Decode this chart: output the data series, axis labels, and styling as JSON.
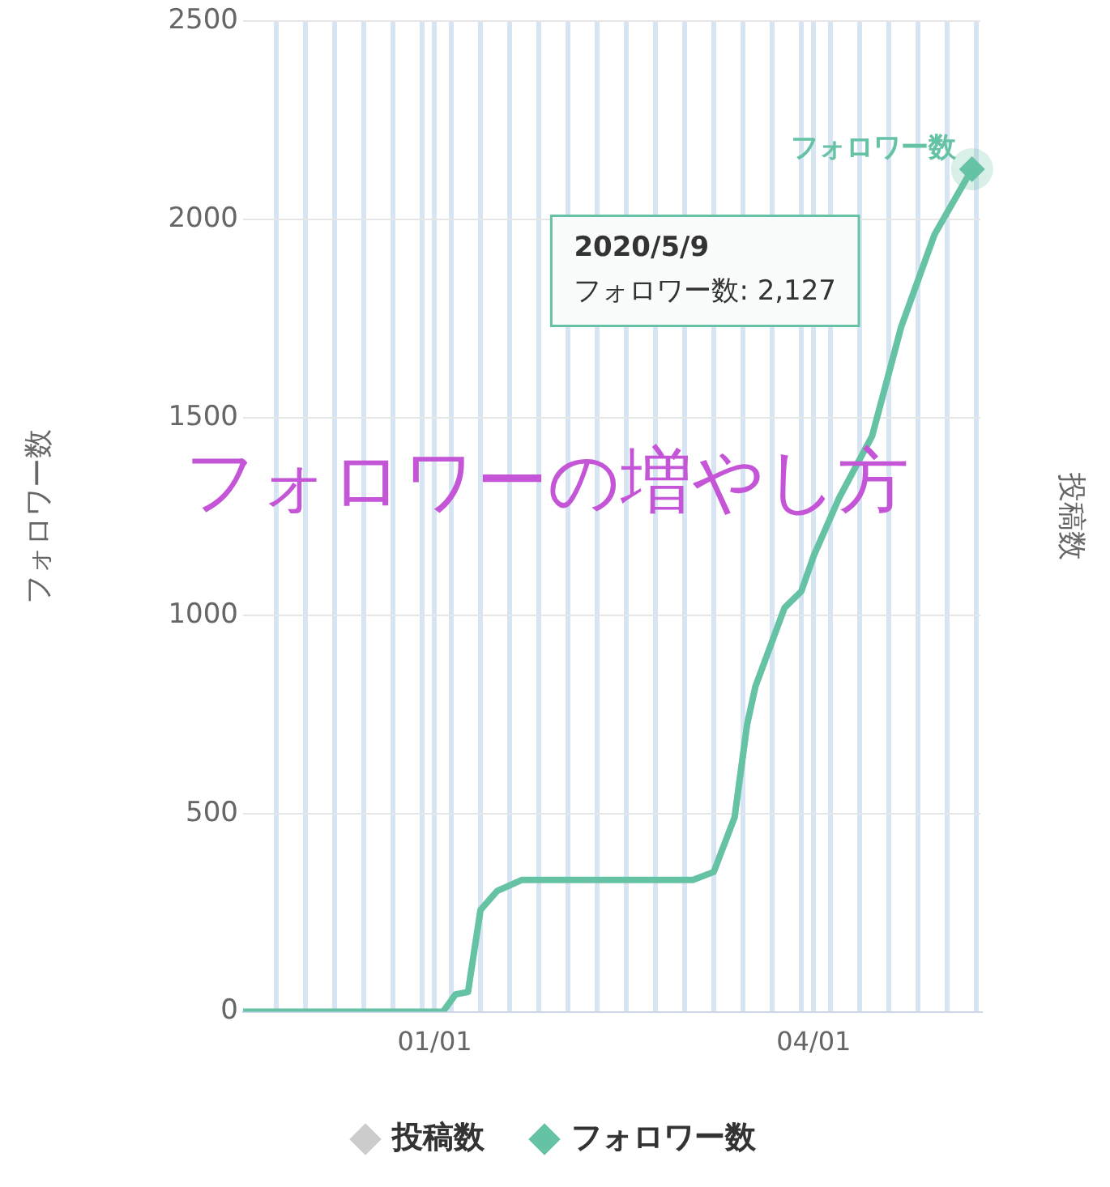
{
  "chart_data": {
    "type": "line",
    "ylabel": "フォロワー数",
    "y2label": "投稿数",
    "x": [
      "2019-11-16",
      "2020-01-03",
      "2020-01-06",
      "2020-01-09",
      "2020-01-12",
      "2020-01-16",
      "2020-01-22",
      "2020-03-03",
      "2020-03-08",
      "2020-03-13",
      "2020-03-16",
      "2020-03-18",
      "2020-03-25",
      "2020-03-29",
      "2020-04-01",
      "2020-04-07",
      "2020-04-15",
      "2020-04-22",
      "2020-04-30",
      "2020-05-09"
    ],
    "series": [
      {
        "name": "投稿数",
        "color": "#cccccc",
        "values": [
          null,
          null,
          null,
          null,
          null,
          null,
          null,
          null,
          null,
          null,
          null,
          null,
          null,
          null,
          null,
          null,
          null,
          null,
          null,
          null
        ]
      },
      {
        "name": "フォロワー数",
        "color": "#66c2a5",
        "values": [
          0,
          0,
          44,
          50,
          257,
          305,
          333,
          333,
          353,
          491,
          725,
          821,
          1020,
          1061,
          1151,
          1295,
          1453,
          1729,
          1962,
          2127
        ]
      }
    ],
    "xlim": [
      "2019-11-16",
      "2020-05-11"
    ],
    "xticks": [
      {
        "value": "2019-11-24",
        "label": null
      },
      {
        "value": "2019-12-01",
        "label": null
      },
      {
        "value": "2019-12-08",
        "label": null
      },
      {
        "value": "2019-12-15",
        "label": null
      },
      {
        "value": "2019-12-22",
        "label": null
      },
      {
        "value": "2019-12-29",
        "label": null
      },
      {
        "value": "2020-01-01",
        "label": "01/01"
      },
      {
        "value": "2020-01-05",
        "label": null
      },
      {
        "value": "2020-01-12",
        "label": null
      },
      {
        "value": "2020-01-19",
        "label": null
      },
      {
        "value": "2020-01-26",
        "label": null
      },
      {
        "value": "2020-02-02",
        "label": null
      },
      {
        "value": "2020-02-09",
        "label": null
      },
      {
        "value": "2020-02-16",
        "label": null
      },
      {
        "value": "2020-02-23",
        "label": null
      },
      {
        "value": "2020-03-01",
        "label": null
      },
      {
        "value": "2020-03-08",
        "label": null
      },
      {
        "value": "2020-03-15",
        "label": null
      },
      {
        "value": "2020-03-22",
        "label": null
      },
      {
        "value": "2020-03-29",
        "label": null
      },
      {
        "value": "2020-04-01",
        "label": "04/01"
      },
      {
        "value": "2020-04-05",
        "label": null
      },
      {
        "value": "2020-04-12",
        "label": null
      },
      {
        "value": "2020-04-19",
        "label": null
      },
      {
        "value": "2020-04-26",
        "label": null
      },
      {
        "value": "2020-05-03",
        "label": null
      },
      {
        "value": "2020-05-10",
        "label": null
      }
    ],
    "ylim": [
      0,
      2500
    ],
    "yticks": [
      0,
      500,
      1000,
      1500,
      2000,
      2500
    ],
    "grid": true,
    "legend": "bottom",
    "line_style": "solid",
    "annotations": [
      "フォロワーの増やし方",
      "2020/5/9\nフォロワー数: 2,127"
    ]
  }
}
